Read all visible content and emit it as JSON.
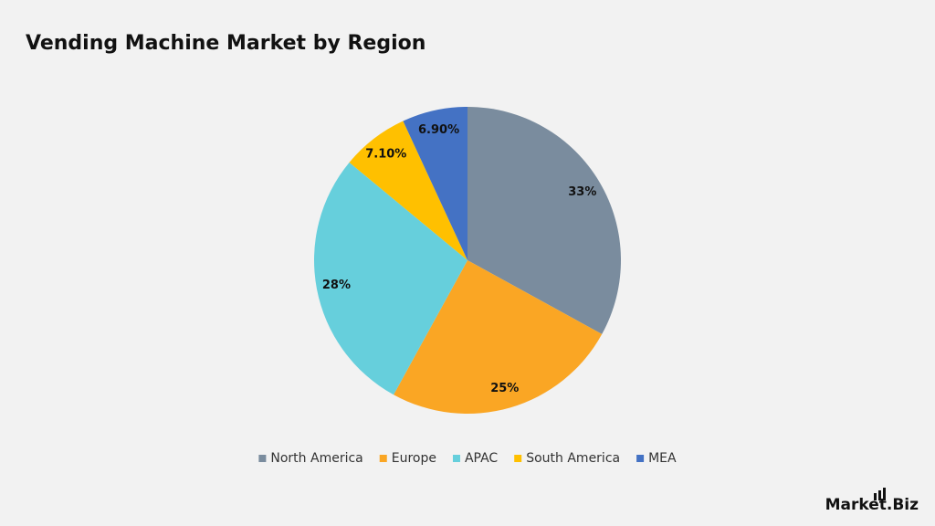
{
  "chart_data": {
    "type": "pie",
    "title": "Vending Machine Market by Region",
    "categories": [
      "North America",
      "Europe",
      "APAC",
      "South America",
      "MEA"
    ],
    "values": [
      33,
      25,
      28,
      7.1,
      6.9
    ],
    "value_labels": [
      "33%",
      "25%",
      "28%",
      "7.10%",
      "6.90%"
    ],
    "colors": [
      "#7a8c9e",
      "#faa624",
      "#66cfdc",
      "#ffc000",
      "#4472c4"
    ],
    "legend": "bottom"
  },
  "brand": "Market.Biz"
}
